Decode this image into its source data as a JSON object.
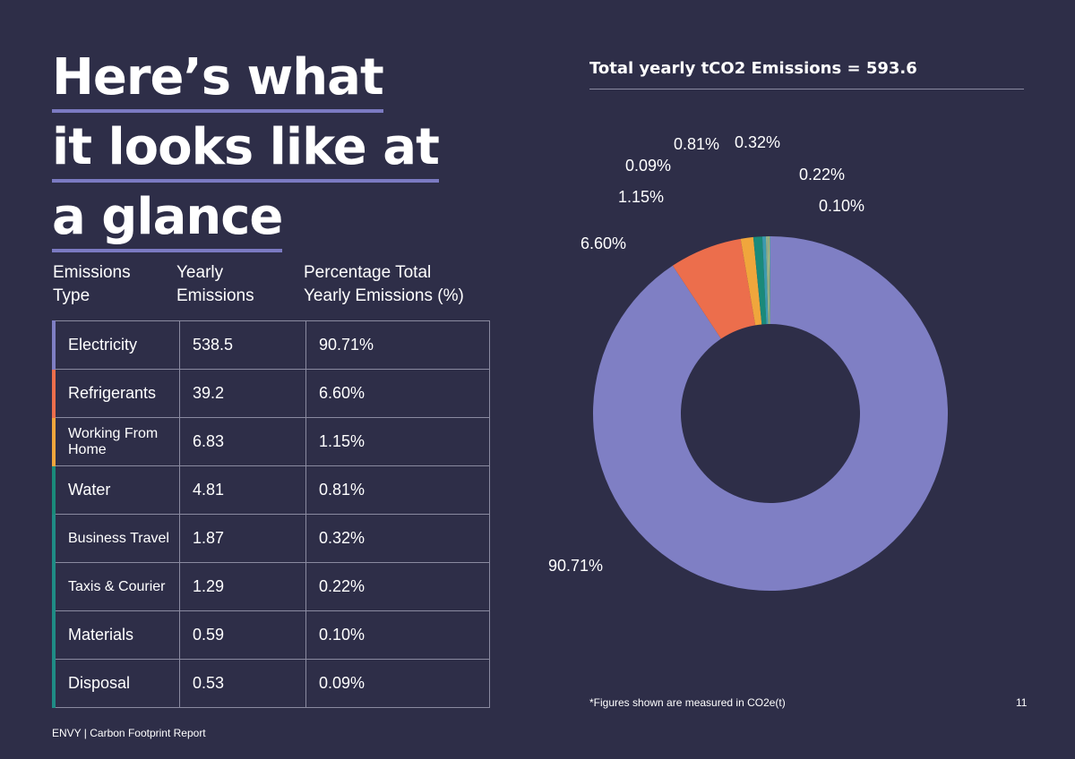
{
  "headline": [
    "Here’s what",
    "it looks like at",
    "a glance"
  ],
  "table": {
    "headers": [
      [
        "Emissions",
        "Type"
      ],
      [
        "Yearly",
        "Emissions"
      ],
      [
        "Percentage Total",
        "Yearly Emissions (%)"
      ]
    ],
    "rows": [
      {
        "type": "Electricity",
        "value": "538.5",
        "pct": "90.71%",
        "color": "#7f7fc4"
      },
      {
        "type": "Refrigerants",
        "value": "39.2",
        "pct": "6.60%",
        "color": "#ec6e4c"
      },
      {
        "type": "Working From Home",
        "value": "6.83",
        "pct": "1.15%",
        "color": "#f0a63c"
      },
      {
        "type": "Water",
        "value": "4.81",
        "pct": "0.81%",
        "color": "#1a8a7a"
      },
      {
        "type": "Business Travel",
        "value": "1.87",
        "pct": "0.32%",
        "color": "#1f8c85"
      },
      {
        "type": "Taxis & Courier",
        "value": "1.29",
        "pct": "0.22%",
        "color": "#1f8c85"
      },
      {
        "type": "Materials",
        "value": "0.59",
        "pct": "0.10%",
        "color": "#1f8c85"
      },
      {
        "type": "Disposal",
        "value": "0.53",
        "pct": "0.09%",
        "color": "#1f8c85"
      }
    ]
  },
  "chart_data": {
    "type": "pie",
    "title": "Total  yearly tCO2 Emissions = 593.6",
    "categories": [
      "Electricity",
      "Refrigerants",
      "Working From Home",
      "Water",
      "Business Travel",
      "Taxis & Courier",
      "Materials",
      "Disposal"
    ],
    "values": [
      90.71,
      6.6,
      1.15,
      0.81,
      0.32,
      0.22,
      0.1,
      0.09
    ],
    "labels": [
      "90.71%",
      "6.60%",
      "1.15%",
      "0.81%",
      "0.32%",
      "0.22%",
      "0.10%",
      "0.09%"
    ],
    "colors": [
      "#7f7fc4",
      "#ec6e4c",
      "#f0a63c",
      "#1a8a7a",
      "#3c9bb0",
      "#8fb08c",
      "#b8c07a",
      "#5f9ea0"
    ]
  },
  "footnote": "*Figures shown are measured in CO2e(t)",
  "page_number": "11",
  "footer": "ENVY  | Carbon Footprint Report"
}
